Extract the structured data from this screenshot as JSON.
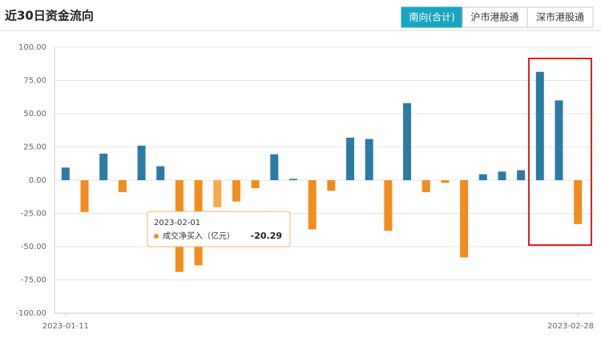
{
  "header": {
    "title": "近30日资金流向",
    "tabs": [
      "南向(合计)",
      "沪市港股通",
      "深市港股通"
    ],
    "active_tab": 0
  },
  "chart_data": {
    "type": "bar",
    "categories": [
      "2023-01-11",
      null,
      null,
      null,
      null,
      null,
      null,
      null,
      null,
      null,
      null,
      null,
      null,
      null,
      null,
      null,
      null,
      null,
      null,
      null,
      null,
      null,
      null,
      null,
      null,
      null,
      null,
      "2023-02-28"
    ],
    "values": [
      9.5,
      -24,
      20,
      -9,
      26,
      10.5,
      -69,
      -64,
      -20.29,
      -16,
      -6,
      19.5,
      1,
      -37,
      -8,
      32,
      31,
      -38,
      58,
      -9,
      -2,
      -58,
      4.5,
      6.5,
      7.5,
      81.5,
      60,
      -33
    ],
    "positive_color": "#2b7ca3",
    "negative_color": "#f28c1d",
    "highlight_color": "#f8ab4d",
    "ylim": [
      -100,
      100
    ],
    "yticks": [
      {
        "value": -100,
        "label": "-100.00"
      },
      {
        "value": -75,
        "label": "-75.00"
      },
      {
        "value": -50,
        "label": "-50.00"
      },
      {
        "value": -25,
        "label": "-25.00"
      },
      {
        "value": 0,
        "label": "0.00"
      },
      {
        "value": 25,
        "label": "25.00"
      },
      {
        "value": 50,
        "label": "50.00"
      },
      {
        "value": 75,
        "label": "75.00"
      },
      {
        "value": 100,
        "label": "100.00"
      }
    ],
    "grid": true,
    "tooltip": {
      "date": "2023-02-01",
      "series": "成交净买入（亿元）",
      "value": -20.29
    }
  }
}
